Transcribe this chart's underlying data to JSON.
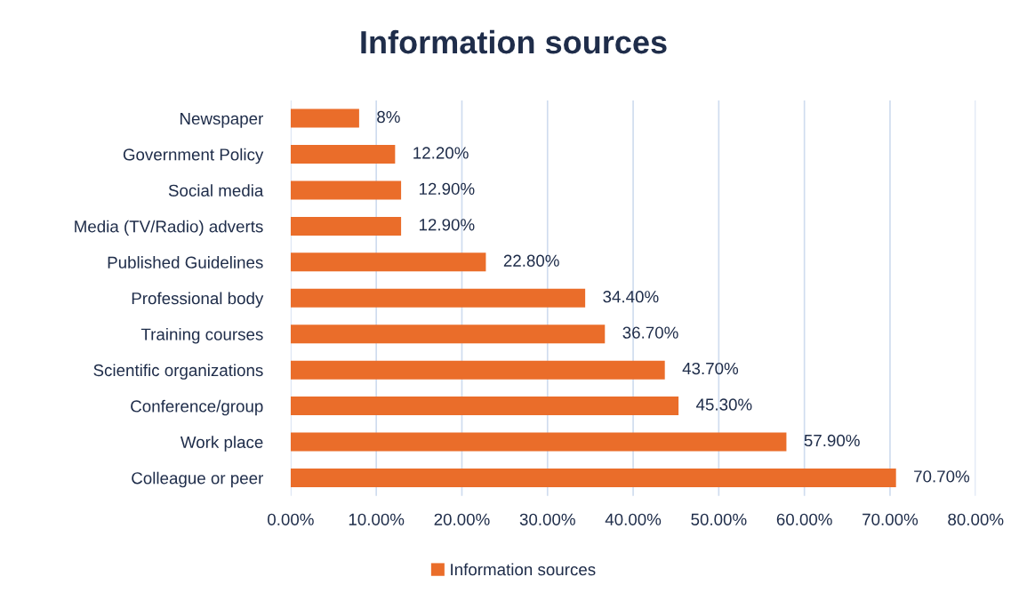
{
  "chart_data": {
    "type": "bar",
    "orientation": "horizontal",
    "title": "Information sources",
    "categories": [
      "Newspaper",
      "Government Policy",
      "Social media",
      "Media (TV/Radio) adverts",
      "Published Guidelines",
      "Professional body",
      "Training courses",
      "Scientific organizations",
      "Conference/group",
      "Work place",
      "Colleague or peer"
    ],
    "series": [
      {
        "name": "Information sources",
        "color": "#ea6d2a",
        "values": [
          8,
          12.2,
          12.9,
          12.9,
          22.8,
          34.4,
          36.7,
          43.7,
          45.3,
          57.9,
          70.7
        ],
        "value_labels": [
          "8%",
          "12.20%",
          "12.90%",
          "12.90%",
          "22.80%",
          "34.40%",
          "36.70%",
          "43.70%",
          "45.30%",
          "57.90%",
          "70.70%"
        ]
      }
    ],
    "xlim": [
      0,
      80
    ],
    "xticks": [
      {
        "value": 0,
        "label": "0.00%"
      },
      {
        "value": 10,
        "label": "10.00%"
      },
      {
        "value": 20,
        "label": "20.00%"
      },
      {
        "value": 30,
        "label": "30.00%"
      },
      {
        "value": 40,
        "label": "40.00%"
      },
      {
        "value": 50,
        "label": "50.00%"
      },
      {
        "value": 60,
        "label": "60.00%"
      },
      {
        "value": 70,
        "label": "70.00%"
      },
      {
        "value": 80,
        "label": "80.00%"
      }
    ],
    "grid": "x",
    "legend": "bottom"
  }
}
